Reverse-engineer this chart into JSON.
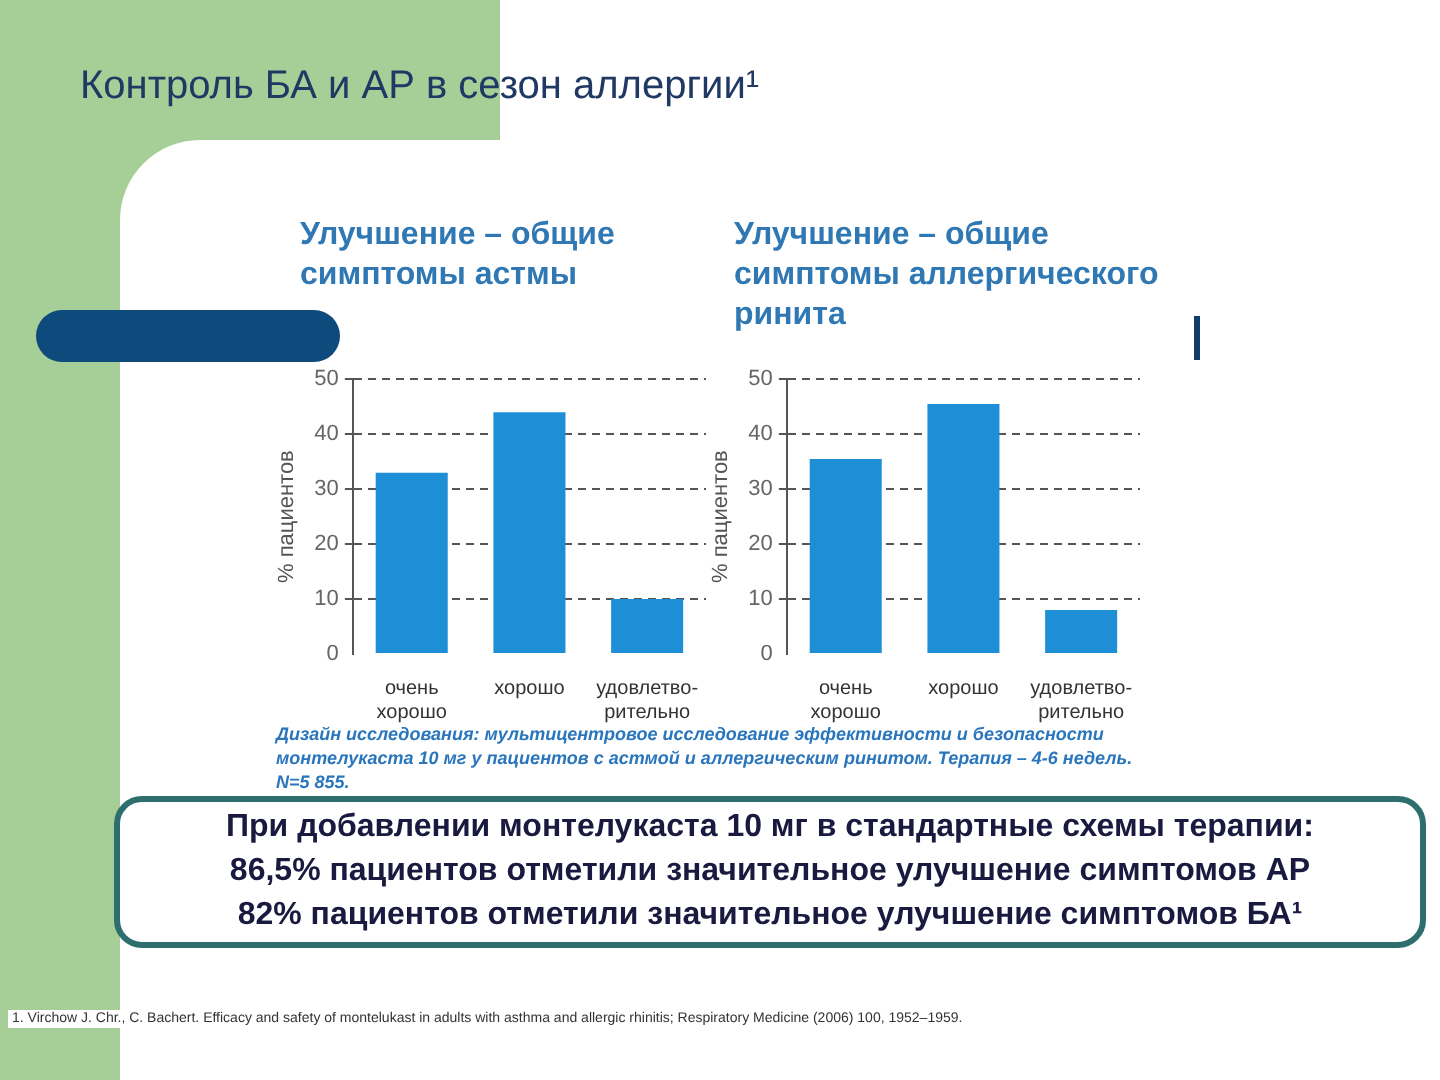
{
  "chart_data": [
    {
      "type": "bar",
      "title": "Улучшение – общие симптомы астмы",
      "ylabel": "% пациентов",
      "categories": [
        "очень хорошо",
        "хорошо",
        "удовлетво-рительно"
      ],
      "values": [
        33,
        44,
        10
      ],
      "color": "#1e8fd6",
      "ylim": [
        0,
        50
      ],
      "yticks": [
        0,
        10,
        20,
        30,
        40,
        50
      ],
      "grid": "y"
    },
    {
      "type": "bar",
      "title": "Улучшение – общие симптомы аллергического ринита",
      "ylabel": "% пациентов",
      "categories": [
        "очень хорошо",
        "хорошо",
        "удовлетво-рительно"
      ],
      "values": [
        35.5,
        45.5,
        8
      ],
      "color": "#1e8fd6",
      "ylim": [
        0,
        50
      ],
      "yticks": [
        0,
        10,
        20,
        30,
        40,
        50
      ],
      "grid": "y"
    },
    {
      "type": "other",
      "title": "Контроль БА и АР в сезон аллергии¹",
      "annotations": [
        "Дизайн исследования: мультицентровое исследование эффективности и безопасности монтелукаста 10 мг у пациентов с астмой и аллергическим ринитом. Терапия – 4-6 недель. N=5 855.",
        "При добавлении монтелукаста 10 мг в стандартные схемы терапии:",
        "86,5% пациентов отметили значительное улучшение симптомов АР",
        "82% пациентов отметили значительное улучшение симптомов БА¹",
        "1. Virchow J. Chr., C. Bachert. Efficacy and safety of montelukast in adults with asthma and allergic rhinitis; Respiratory Medicine (2006) 100, 1952–1959."
      ]
    }
  ]
}
